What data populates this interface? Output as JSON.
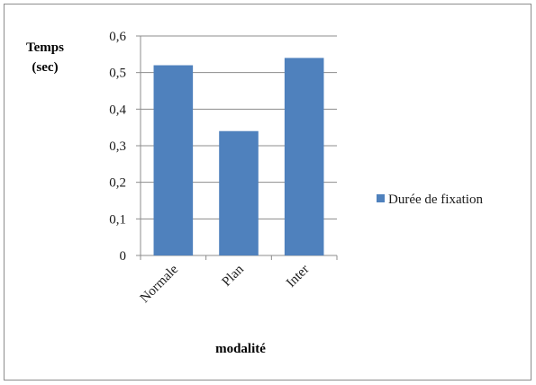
{
  "chart_data": {
    "type": "bar",
    "title": "",
    "xlabel": "modalité",
    "ylabel_lines": [
      "Temps",
      "(sec)"
    ],
    "categories": [
      "Normale",
      "Plan",
      "Inter"
    ],
    "series": [
      {
        "name": "Durée de fixation",
        "values": [
          0.52,
          0.34,
          0.54
        ],
        "color": "#4f81bd"
      }
    ],
    "ylim": [
      0,
      0.6
    ],
    "yticks": [
      "0",
      "0,1",
      "0,2",
      "0,3",
      "0,4",
      "0,5",
      "0,6"
    ],
    "grid": true,
    "legend_position": "right"
  }
}
